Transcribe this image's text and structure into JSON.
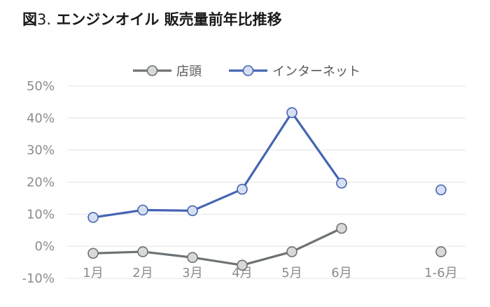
{
  "title": {
    "prefix": "図",
    "number": "3.",
    "text": " エンジンオイル 販売量前年比推移"
  },
  "chart_data": {
    "type": "line",
    "categories": [
      "1月",
      "2月",
      "3月",
      "4月",
      "5月",
      "6月",
      "1-6月"
    ],
    "ylim": [
      -10,
      50
    ],
    "yticks": [
      -10,
      0,
      10,
      20,
      30,
      40,
      50
    ],
    "ytick_labels": [
      "-10%",
      "0%",
      "10%",
      "20%",
      "30%",
      "40%",
      "50%"
    ],
    "grid": true,
    "legend_position": "top",
    "series": [
      {
        "name": "店頭",
        "color": "#6d7275",
        "marker_fill": "#d9d9d9",
        "values": [
          -2.2,
          -1.7,
          -3.5,
          -5.9,
          -1.7,
          5.6,
          -1.7
        ],
        "connect_through_index": 5
      },
      {
        "name": "インターネット",
        "color": "#4565b3",
        "marker_fill": "#d6dff3",
        "values": [
          9.0,
          11.3,
          11.1,
          17.8,
          41.7,
          19.7,
          17.6
        ],
        "connect_through_index": 5
      }
    ]
  }
}
